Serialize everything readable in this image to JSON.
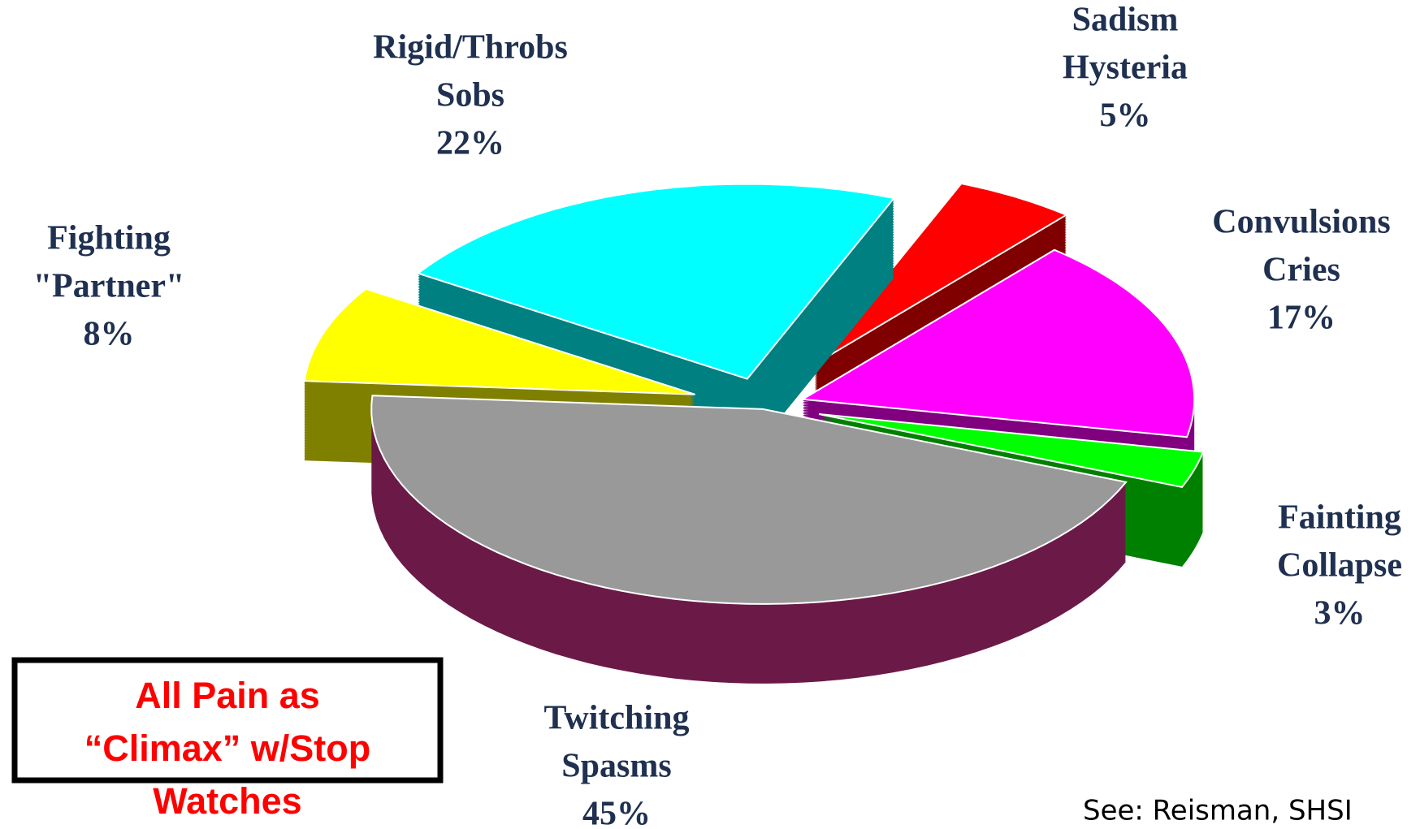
{
  "chart_data": {
    "type": "pie3d",
    "categories": [
      [
        "Fainting",
        "Collapse"
      ],
      [
        "Convulsions",
        "Cries"
      ],
      [
        "Sadism",
        "Hysteria"
      ],
      [
        "Rigid/Throbs",
        "Sobs"
      ],
      [
        "Fighting",
        "\"Partner\""
      ],
      [
        "Twitching",
        "Spasms"
      ]
    ],
    "values": [
      3,
      17,
      5,
      22,
      8,
      45
    ],
    "value_labels": [
      "3%",
      "17%",
      "5%",
      "22%",
      "8%",
      "45%"
    ],
    "colors": [
      "#00ff00",
      "#ff00ff",
      "#ff0000",
      "#00ffff",
      "#ffff00",
      "#999999"
    ],
    "side_colors": [
      "#008000",
      "#800080",
      "#800000",
      "#008080",
      "#808000",
      "#6b1a48"
    ],
    "annotation": [
      "All Pain as",
      "“Climax”  w/Stop",
      "Watches"
    ],
    "source": "See: Reisman, SHSI"
  }
}
